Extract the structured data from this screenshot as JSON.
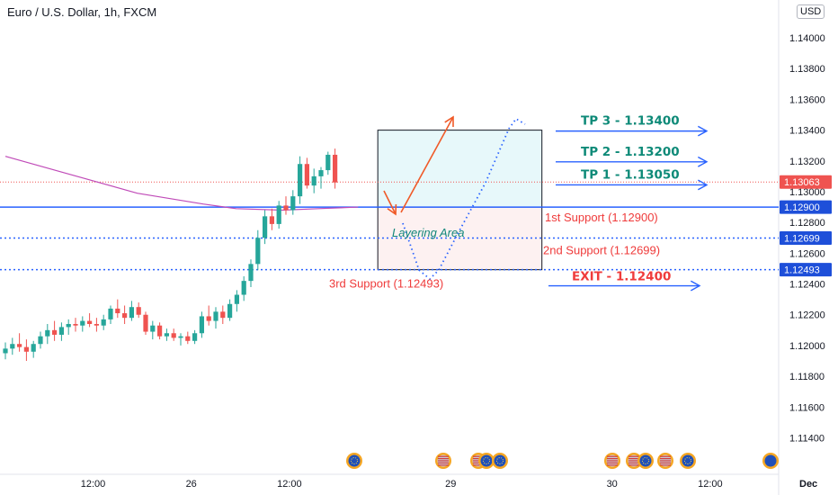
{
  "header": {
    "title": "Euro / U.S. Dollar, 1h, FXCM",
    "currency": "USD"
  },
  "colors": {
    "up": "#26a69a",
    "down": "#ef5350",
    "ma": "#c04bb8",
    "blue": "#2962ff",
    "exit": "#ef3b3b",
    "tp": "#0e8a78",
    "last": "#ef5350"
  },
  "chart_data": {
    "type": "candlestick",
    "title": "Euro / U.S. Dollar, 1h, FXCM",
    "ylim": [
      1.1128,
      1.1417
    ],
    "y_ticks": [
      "1.14000",
      "1.13800",
      "1.13600",
      "1.13400",
      "1.13200",
      "1.13000",
      "1.12800",
      "1.12600",
      "1.12400",
      "1.12200",
      "1.12000",
      "1.11800",
      "1.11600",
      "1.11400"
    ],
    "x_ticks": [
      "12:00",
      "26",
      "12:00",
      "29",
      "30",
      "12:00",
      "Dec",
      "12:00"
    ],
    "x_tick_index": [
      12.5,
      26.5,
      40.5,
      63.5,
      86.5,
      100.5,
      114.5,
      128.5
    ],
    "candles": [
      [
        1.1195,
        1.1202,
        1.1191,
        1.1198
      ],
      [
        1.1198,
        1.1205,
        1.1194,
        1.1201
      ],
      [
        1.1201,
        1.1208,
        1.1196,
        1.1199
      ],
      [
        1.1199,
        1.1204,
        1.119,
        1.1196
      ],
      [
        1.1196,
        1.1203,
        1.1192,
        1.1201
      ],
      [
        1.1201,
        1.1209,
        1.1198,
        1.1206
      ],
      [
        1.1206,
        1.1214,
        1.1201,
        1.121
      ],
      [
        1.121,
        1.1216,
        1.1203,
        1.1207
      ],
      [
        1.1207,
        1.1215,
        1.1203,
        1.1212
      ],
      [
        1.1212,
        1.1217,
        1.1207,
        1.1214
      ],
      [
        1.1214,
        1.1218,
        1.1209,
        1.1213
      ],
      [
        1.1213,
        1.1219,
        1.1209,
        1.1216
      ],
      [
        1.1216,
        1.1221,
        1.1212,
        1.1214
      ],
      [
        1.1214,
        1.1218,
        1.1209,
        1.1213
      ],
      [
        1.1213,
        1.122,
        1.121,
        1.1217
      ],
      [
        1.1217,
        1.1226,
        1.1214,
        1.1224
      ],
      [
        1.1224,
        1.123,
        1.1218,
        1.1221
      ],
      [
        1.1221,
        1.1226,
        1.1214,
        1.1218
      ],
      [
        1.1218,
        1.1229,
        1.1216,
        1.1225
      ],
      [
        1.1225,
        1.1228,
        1.1218,
        1.122
      ],
      [
        1.122,
        1.1222,
        1.1207,
        1.1209
      ],
      [
        1.1209,
        1.1216,
        1.1204,
        1.1213
      ],
      [
        1.1213,
        1.1215,
        1.1204,
        1.1206
      ],
      [
        1.1206,
        1.1211,
        1.1203,
        1.1208
      ],
      [
        1.1208,
        1.1211,
        1.1203,
        1.1205
      ],
      [
        1.1205,
        1.1208,
        1.12,
        1.1206
      ],
      [
        1.1206,
        1.1209,
        1.1201,
        1.1203
      ],
      [
        1.1203,
        1.121,
        1.1201,
        1.1208
      ],
      [
        1.1208,
        1.1222,
        1.1205,
        1.1219
      ],
      [
        1.1219,
        1.1226,
        1.1213,
        1.1216
      ],
      [
        1.1216,
        1.1225,
        1.1211,
        1.1222
      ],
      [
        1.1222,
        1.1226,
        1.1214,
        1.1218
      ],
      [
        1.1218,
        1.123,
        1.1216,
        1.1227
      ],
      [
        1.1227,
        1.1236,
        1.1222,
        1.1233
      ],
      [
        1.1233,
        1.1245,
        1.1229,
        1.1242
      ],
      [
        1.1242,
        1.1256,
        1.1238,
        1.1253
      ],
      [
        1.1253,
        1.1275,
        1.1249,
        1.127
      ],
      [
        1.127,
        1.1288,
        1.1266,
        1.1284
      ],
      [
        1.1284,
        1.1289,
        1.1275,
        1.1279
      ],
      [
        1.1279,
        1.1294,
        1.1276,
        1.1291
      ],
      [
        1.1291,
        1.1297,
        1.1285,
        1.1288
      ],
      [
        1.1288,
        1.1301,
        1.1285,
        1.1297
      ],
      [
        1.1297,
        1.1323,
        1.1292,
        1.1318
      ],
      [
        1.1318,
        1.1322,
        1.1302,
        1.1304
      ],
      [
        1.1304,
        1.1315,
        1.1299,
        1.131
      ],
      [
        1.131,
        1.1316,
        1.1302,
        1.1314
      ],
      [
        1.1314,
        1.1326,
        1.1311,
        1.1324
      ],
      [
        1.1324,
        1.1328,
        1.1302,
        1.1306
      ]
    ],
    "moving_average": [
      [
        0,
        1.1323
      ],
      [
        20,
        1.1311
      ],
      [
        40,
        1.1299
      ],
      [
        60,
        1.1292
      ],
      [
        70,
        1.1289
      ],
      [
        84,
        1.1288
      ],
      [
        95,
        1.1289
      ],
      [
        107,
        1.129
      ]
    ],
    "levels": {
      "last_price": "1.13063",
      "first_support": "1.12900",
      "second_support": "1.12699",
      "third_support": "1.12493"
    },
    "annotations": {
      "tp3": "TP 3 - 1.13400",
      "tp2": "TP 2 - 1.13200",
      "tp1": "TP 1 - 1.13050",
      "exit": "EXIT - 1.12400",
      "first_support": "1st Support (1.12900)",
      "second_support": "2nd Support (1.12699)",
      "third_support": "3rd Support (1.12493)",
      "layering": "Layering Area"
    },
    "event_flags": [
      "eu",
      "us-eu",
      "us-us",
      "eu",
      "eu",
      "us-us",
      "us",
      "eu",
      "us",
      "eu"
    ]
  }
}
